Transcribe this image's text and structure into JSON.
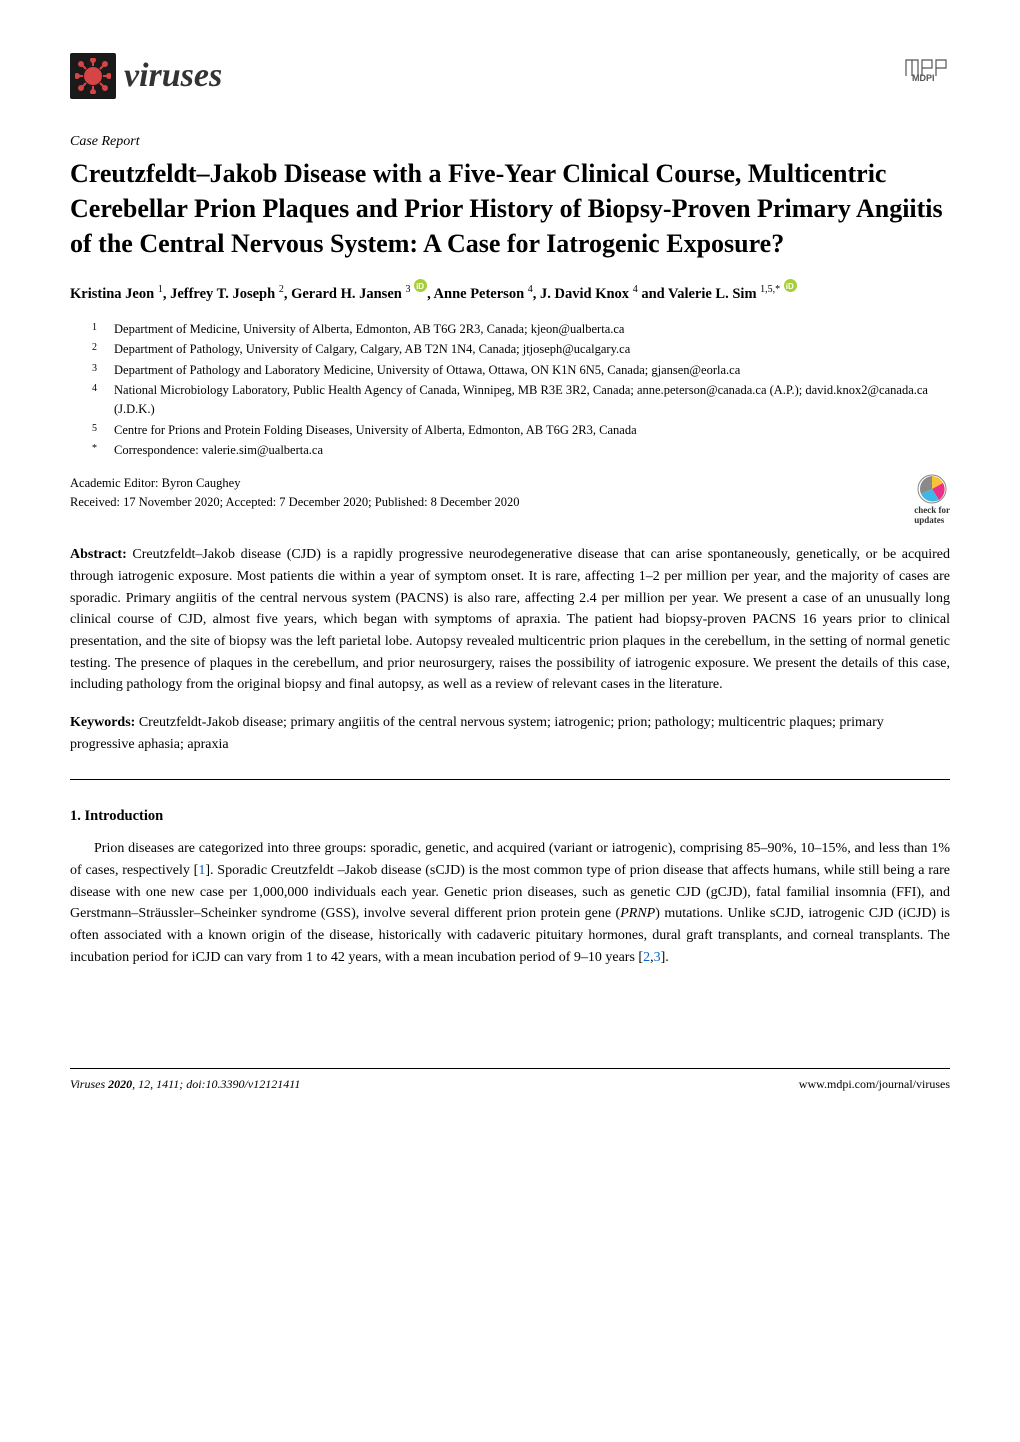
{
  "journal": {
    "name": "viruses",
    "logo_bg": "#1a1a1a",
    "logo_fg": "#d64545"
  },
  "publisher": {
    "name": "MDPI"
  },
  "article_type": "Case Report",
  "title": "Creutzfeldt–Jakob Disease with a Five-Year Clinical Course, Multicentric Cerebellar Prion Plaques and Prior History of Biopsy-Proven Primary Angiitis of the Central Nervous System: A Case for Iatrogenic Exposure?",
  "authors_html": "Kristina Jeon <sup>1</sup>, Jeffrey T. Joseph <sup>2</sup>, Gerard H. Jansen <sup>3</sup> <span class='orcid-icon' data-name='orcid-icon' data-interactable='false'></span>, Anne Peterson <sup>4</sup>, J. David Knox <sup>4</sup> and Valerie L. Sim <sup>1,5,*</sup> <span class='orcid-icon' data-name='orcid-icon' data-interactable='false'></span>",
  "affiliations": [
    {
      "num": "1",
      "text": "Department of Medicine, University of Alberta, Edmonton, AB T6G 2R3, Canada; kjeon@ualberta.ca"
    },
    {
      "num": "2",
      "text": "Department of Pathology, University of Calgary, Calgary, AB T2N 1N4, Canada; jtjoseph@ucalgary.ca"
    },
    {
      "num": "3",
      "text": "Department of Pathology and Laboratory Medicine, University of Ottawa, Ottawa, ON K1N 6N5, Canada; gjansen@eorla.ca"
    },
    {
      "num": "4",
      "text": "National Microbiology Laboratory, Public Health Agency of Canada, Winnipeg, MB R3E 3R2, Canada; anne.peterson@canada.ca (A.P.); david.knox2@canada.ca (J.D.K.)"
    },
    {
      "num": "5",
      "text": "Centre for Prions and Protein Folding Diseases, University of Alberta, Edmonton, AB T6G 2R3, Canada"
    },
    {
      "num": "*",
      "text": "Correspondence: valerie.sim@ualberta.ca"
    }
  ],
  "editor": "Academic Editor: Byron Caughey",
  "dates": "Received: 17 November 2020; Accepted: 7 December 2020; Published: 8 December 2020",
  "check_updates_label": "check for",
  "check_updates_label2": "updates",
  "abstract_label": "Abstract:",
  "abstract_text": " Creutzfeldt–Jakob disease (CJD) is a rapidly progressive neurodegenerative disease that can arise spontaneously, genetically, or be acquired through iatrogenic exposure. Most patients die within a year of symptom onset. It is rare, affecting 1–2 per million per year, and the majority of cases are sporadic. Primary angiitis of the central nervous system (PACNS) is also rare, affecting 2.4 per million per year. We present a case of an unusually long clinical course of CJD, almost five years, which began with symptoms of apraxia. The patient had biopsy-proven PACNS 16 years prior to clinical presentation, and the site of biopsy was the left parietal lobe. Autopsy revealed multicentric prion plaques in the cerebellum, in the setting of normal genetic testing. The presence of plaques in the cerebellum, and prior neurosurgery, raises the possibility of iatrogenic exposure. We present the details of this case, including pathology from the original biopsy and final autopsy, as well as a review of relevant cases in the literature.",
  "keywords_label": "Keywords:",
  "keywords_text": " Creutzfeldt-Jakob disease; primary angiitis of the central nervous system; iatrogenic; prion; pathology; multicentric plaques; primary progressive aphasia; apraxia",
  "section1_heading": "1. Introduction",
  "intro_para": "Prion diseases are categorized into three groups: sporadic, genetic, and acquired (variant or iatrogenic), comprising 85–90%, 10–15%, and less than 1% of cases, respectively [<span class='ref' data-name='citation-link' data-interactable='true'>1</span>]. Sporadic Creutzfeldt –Jakob disease (sCJD) is the most common type of prion disease that affects humans, while still being a rare disease with one new case per 1,000,000 individuals each year. Genetic prion diseases, such as genetic CJD (gCJD), fatal familial insomnia (FFI), and Gerstmann–Sträussler–Scheinker syndrome (GSS), involve several different prion protein gene (<span class='gene-italic'>PRNP</span>) mutations. Unlike sCJD, iatrogenic CJD (iCJD) is often associated with a known origin of the disease, historically with cadaveric pituitary hormones, dural graft transplants, and corneal transplants. The incubation period for iCJD can vary from 1 to 42 years, with a mean incubation period of 9–10 years [<span class='ref' data-name='citation-link' data-interactable='true'>2</span>,<span class='ref' data-name='citation-link' data-interactable='true'>3</span>].",
  "footer": {
    "left_journal": "Viruses",
    "left_year": "2020",
    "left_vol": "12",
    "left_page": "1411",
    "left_doi": "doi:10.3390/v12121411",
    "right_url": "www.mdpi.com/journal/viruses"
  },
  "colors": {
    "link": "#0066cc",
    "orcid": "#a6ce39",
    "crossmark_pink": "#ec2f89",
    "crossmark_yellow": "#f9c338",
    "crossmark_blue": "#3db7e4"
  }
}
